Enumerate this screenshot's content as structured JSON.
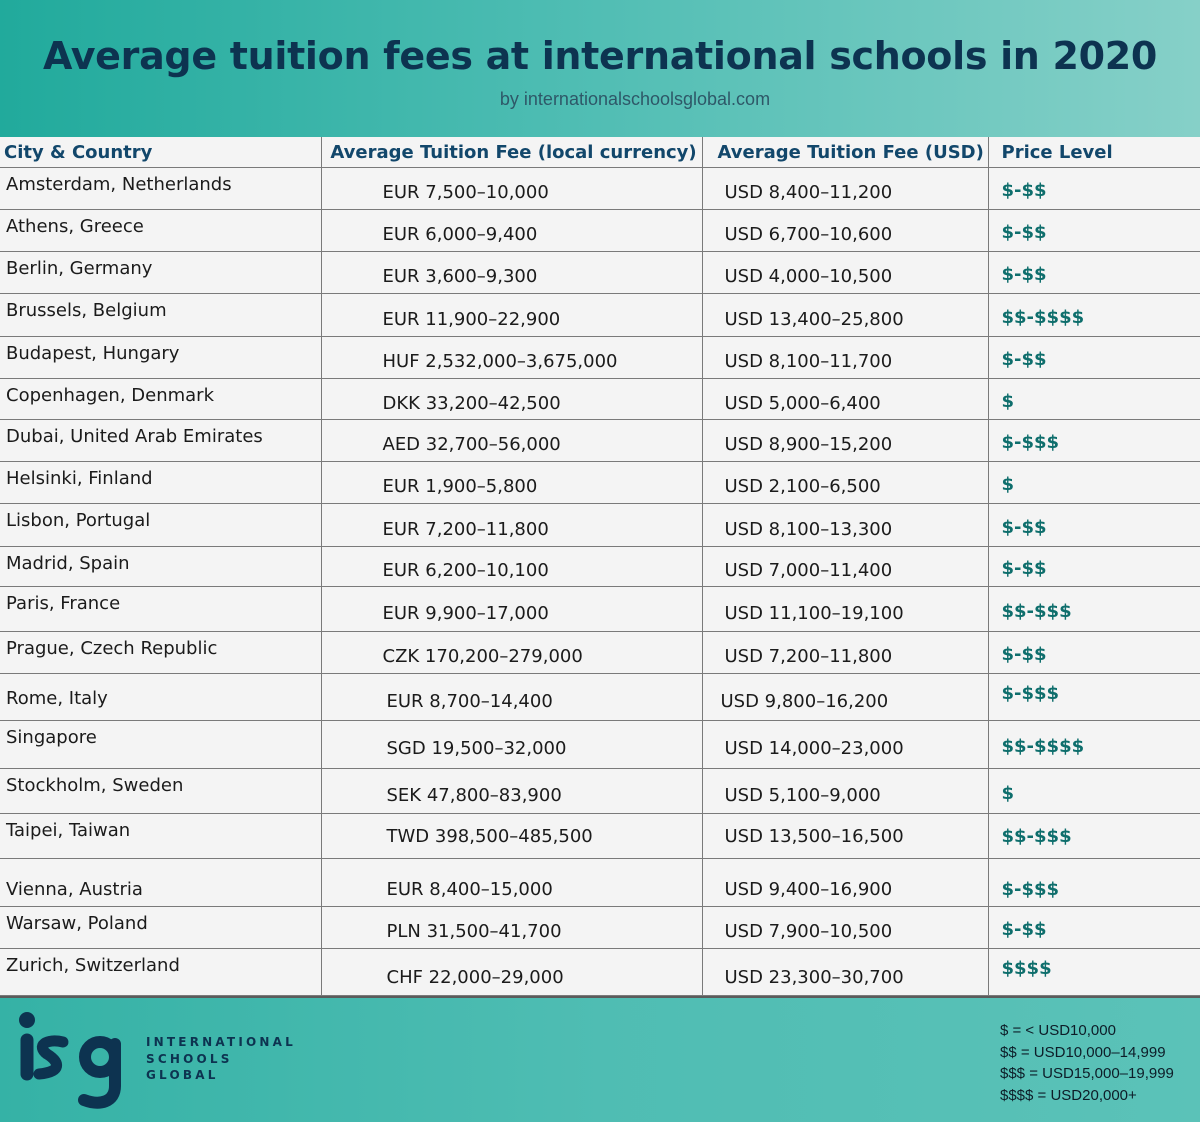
{
  "header": {
    "title": "Average tuition fees at international schools in 2020",
    "subtitle": "by internationalschoolsglobal.com"
  },
  "table": {
    "columns": [
      "City & Country",
      "Average Tuition Fee (local currency)",
      "Average Tuition Fee (USD)",
      "Price Level"
    ],
    "rows": [
      {
        "city": "Amsterdam, Netherlands",
        "local": "EUR 7,500–10,000",
        "usd": "USD 8,400–11,200",
        "price": "$-$$"
      },
      {
        "city": "Athens, Greece",
        "local": "EUR 6,000–9,400",
        "usd": "USD 6,700–10,600",
        "price": "$-$$"
      },
      {
        "city": "Berlin, Germany",
        "local": "EUR 3,600–9,300",
        "usd": "USD 4,000–10,500",
        "price": "$-$$"
      },
      {
        "city": "Brussels, Belgium",
        "local": "EUR 11,900–22,900",
        "usd": "USD 13,400–25,800",
        "price": "$$-$$$$"
      },
      {
        "city": "Budapest, Hungary",
        "local": "HUF 2,532,000–3,675,000",
        "usd": "USD 8,100–11,700",
        "price": "$-$$"
      },
      {
        "city": "Copenhagen, Denmark",
        "local": "DKK 33,200–42,500",
        "usd": "USD 5,000–6,400",
        "price": "$"
      },
      {
        "city": "Dubai, United Arab Emirates",
        "local": "AED 32,700–56,000",
        "usd": "USD 8,900–15,200",
        "price": "$-$$$"
      },
      {
        "city": "Helsinki, Finland",
        "local": "EUR 1,900–5,800",
        "usd": "USD 2,100–6,500",
        "price": "$"
      },
      {
        "city": "Lisbon, Portugal",
        "local": "EUR 7,200–11,800",
        "usd": "USD 8,100–13,300",
        "price": "$-$$"
      },
      {
        "city": "Madrid, Spain",
        "local": "EUR 6,200–10,100",
        "usd": "USD 7,000–11,400",
        "price": "$-$$"
      },
      {
        "city": "Paris, France",
        "local": "EUR 9,900–17,000",
        "usd": "USD 11,100–19,100",
        "price": "$$-$$$"
      },
      {
        "city": "Prague, Czech Republic",
        "local": "CZK 170,200–279,000",
        "usd": "USD 7,200–11,800",
        "price": "$-$$"
      },
      {
        "city": "Rome, Italy",
        "local": "EUR 8,700–14,400",
        "usd": "USD 9,800–16,200",
        "price": "$-$$$"
      },
      {
        "city": "Singapore",
        "local": "SGD 19,500–32,000",
        "usd": "USD 14,000–23,000",
        "price": "$$-$$$$"
      },
      {
        "city": "Stockholm, Sweden",
        "local": "SEK 47,800–83,900",
        "usd": "USD 5,100–9,000",
        "price": "$"
      },
      {
        "city": "Taipei, Taiwan",
        "local": "TWD 398,500–485,500",
        "usd": "USD 13,500–16,500",
        "price": "$$-$$$"
      },
      {
        "city": "Vienna, Austria",
        "local": "EUR 8,400–15,000",
        "usd": "USD 9,400–16,900",
        "price": "$-$$$"
      },
      {
        "city": "Warsaw, Poland",
        "local": "PLN 31,500–41,700",
        "usd": "USD 7,900–10,500",
        "price": "$-$$"
      },
      {
        "city": "Zurich, Switzerland",
        "local": "CHF 22,000–29,000",
        "usd": "USD 23,300–30,700",
        "price": "$$$$"
      }
    ]
  },
  "footer": {
    "logo_mark": "isg",
    "logo_lines": [
      "INTERNATIONAL",
      "SCHOOLS",
      "GLOBAL"
    ],
    "legend": [
      "$ = < USD10,000",
      "$$ = USD10,000–14,999",
      "$$$ = USD15,000–19,999",
      "$$$$ = USD20,000+"
    ]
  },
  "colors": {
    "header_start": "#21aa9c",
    "header_end": "#86d0c8",
    "title_text": "#0d3350",
    "column_header_text": "#12476b",
    "price_text": "#0e6e6c",
    "footer_bg": "#4fbdb3"
  }
}
